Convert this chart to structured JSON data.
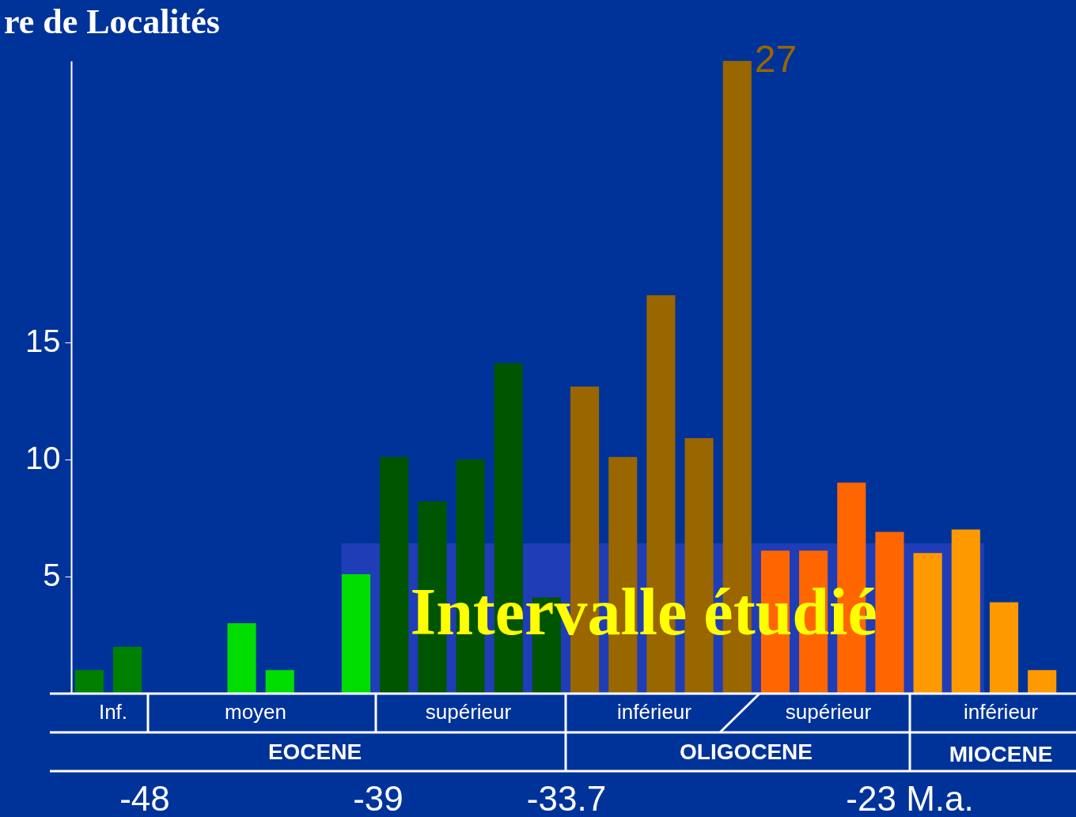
{
  "chart_data": {
    "type": "bar",
    "title": "re de Localités",
    "categories": [
      null,
      null,
      null,
      null,
      null,
      null,
      null,
      null,
      null,
      null,
      null,
      null,
      null,
      null,
      null,
      null,
      null,
      null,
      null,
      null,
      null,
      null,
      null,
      null,
      null,
      null
    ],
    "values": [
      1,
      2,
      null,
      null,
      3,
      1,
      null,
      5.1,
      10.1,
      8.2,
      10,
      14.1,
      4.1,
      13.1,
      10.1,
      17,
      10.9,
      27,
      6.1,
      6.1,
      9,
      6.9,
      6,
      7,
      3.9,
      1
    ],
    "colors": [
      "#008000",
      "#008000",
      "#008000",
      "#008000",
      "#00dd00",
      "#00dd00",
      "#00dd00",
      "#00dd00",
      "#005500",
      "#005500",
      "#005500",
      "#005500",
      "#005500",
      "#996600",
      "#996600",
      "#996600",
      "#996600",
      "#996600",
      "#ff6600",
      "#ff6600",
      "#ff6600",
      "#ff6600",
      "#ff9900",
      "#ff9900",
      "#ff9900",
      "#ff9900"
    ],
    "value_labels": [
      null,
      null,
      null,
      null,
      null,
      null,
      null,
      null,
      null,
      null,
      null,
      null,
      null,
      null,
      null,
      null,
      null,
      "27",
      null,
      null,
      null,
      null,
      null,
      null,
      null,
      null
    ],
    "ylim": [
      0,
      27
    ],
    "yticks": [
      5,
      10,
      15
    ],
    "grid": false,
    "annotations": [
      "Inf.",
      "moyen",
      "supérieur",
      "inférieur",
      "supérieur",
      "inférieur",
      "EOCENE",
      "OLIGOCENE",
      "MIOCENE",
      "-48",
      "-39",
      "-33.7",
      "-23 M.a.",
      "Intervalle étudié"
    ]
  }
}
